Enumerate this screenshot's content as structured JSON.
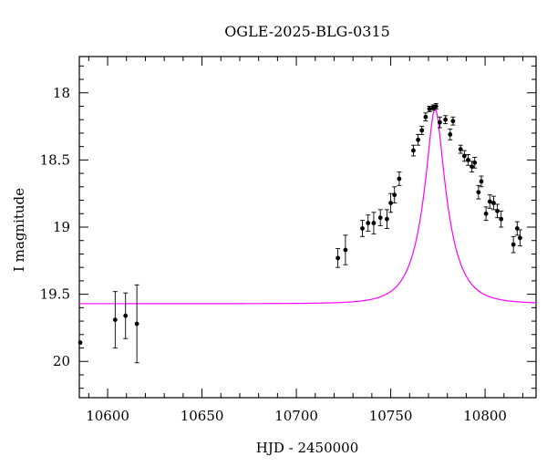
{
  "chart_data": {
    "type": "scatter",
    "title": "OGLE-2025-BLG-0315",
    "xlabel": "HJD - 2450000",
    "ylabel": "I magnitude",
    "xlim": [
      10585,
      10827
    ],
    "ylim": [
      20.27,
      17.73
    ],
    "y_inverted": true,
    "x_ticks": [
      10600,
      10650,
      10700,
      10750,
      10800
    ],
    "x_tick_labels": [
      "10600",
      "10650",
      "10700",
      "10750",
      "10800"
    ],
    "y_ticks": [
      18,
      18.5,
      19,
      19.5,
      20
    ],
    "y_tick_labels": [
      "18",
      "18.5",
      "19",
      "19.5",
      "20"
    ],
    "grid": false,
    "colors": {
      "model": "#ff00ff",
      "points": "#000000"
    },
    "model": {
      "name": "model",
      "type": "point-lens",
      "baseline_mag": 19.57,
      "peak_mag": 18.12,
      "t0": 10773.5,
      "tE": 13.5
    },
    "series": [
      {
        "name": "data",
        "points": [
          {
            "x": 10585.5,
            "y": 19.86,
            "err": 0.0
          },
          {
            "x": 10604.0,
            "y": 19.69,
            "err": 0.21
          },
          {
            "x": 10609.5,
            "y": 19.66,
            "err": 0.17
          },
          {
            "x": 10615.5,
            "y": 19.72,
            "err": 0.29
          },
          {
            "x": 10722.0,
            "y": 19.23,
            "err": 0.07
          },
          {
            "x": 10726.0,
            "y": 19.17,
            "err": 0.11
          },
          {
            "x": 10735.0,
            "y": 19.01,
            "err": 0.06
          },
          {
            "x": 10738.0,
            "y": 18.97,
            "err": 0.06
          },
          {
            "x": 10741.0,
            "y": 18.97,
            "err": 0.08
          },
          {
            "x": 10744.5,
            "y": 18.93,
            "err": 0.06
          },
          {
            "x": 10748.0,
            "y": 18.94,
            "err": 0.07
          },
          {
            "x": 10750.0,
            "y": 18.82,
            "err": 0.07
          },
          {
            "x": 10752.0,
            "y": 18.76,
            "err": 0.06
          },
          {
            "x": 10754.5,
            "y": 18.64,
            "err": 0.05
          },
          {
            "x": 10762.0,
            "y": 18.43,
            "err": 0.04
          },
          {
            "x": 10764.5,
            "y": 18.35,
            "err": 0.04
          },
          {
            "x": 10766.5,
            "y": 18.28,
            "err": 0.03
          },
          {
            "x": 10768.5,
            "y": 18.18,
            "err": 0.03
          },
          {
            "x": 10770.5,
            "y": 18.12,
            "err": 0.02
          },
          {
            "x": 10772.5,
            "y": 18.11,
            "err": 0.02
          },
          {
            "x": 10774.0,
            "y": 18.1,
            "err": 0.02
          },
          {
            "x": 10776.0,
            "y": 18.22,
            "err": 0.04
          },
          {
            "x": 10779.0,
            "y": 18.2,
            "err": 0.03
          },
          {
            "x": 10781.5,
            "y": 18.31,
            "err": 0.04
          },
          {
            "x": 10783.0,
            "y": 18.21,
            "err": 0.03
          },
          {
            "x": 10787.0,
            "y": 18.42,
            "err": 0.03
          },
          {
            "x": 10789.0,
            "y": 18.47,
            "err": 0.04
          },
          {
            "x": 10791.0,
            "y": 18.5,
            "err": 0.04
          },
          {
            "x": 10793.0,
            "y": 18.55,
            "err": 0.04
          },
          {
            "x": 10794.5,
            "y": 18.52,
            "err": 0.04
          },
          {
            "x": 10796.5,
            "y": 18.74,
            "err": 0.05
          },
          {
            "x": 10798.0,
            "y": 18.66,
            "err": 0.04
          },
          {
            "x": 10800.5,
            "y": 18.9,
            "err": 0.05
          },
          {
            "x": 10802.5,
            "y": 18.81,
            "err": 0.05
          },
          {
            "x": 10804.5,
            "y": 18.82,
            "err": 0.05
          },
          {
            "x": 10806.5,
            "y": 18.88,
            "err": 0.05
          },
          {
            "x": 10808.5,
            "y": 18.94,
            "err": 0.06
          },
          {
            "x": 10815.0,
            "y": 19.13,
            "err": 0.06
          },
          {
            "x": 10817.0,
            "y": 19.01,
            "err": 0.05
          },
          {
            "x": 10818.5,
            "y": 19.08,
            "err": 0.06
          }
        ]
      }
    ]
  }
}
